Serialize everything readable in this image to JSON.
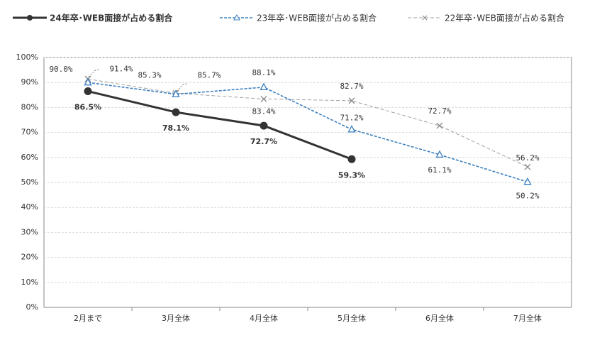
{
  "chart_data": {
    "type": "line",
    "categories": [
      "2月まで",
      "3月全体",
      "4月全体",
      "5月全体",
      "6月全体",
      "7月全体"
    ],
    "series": [
      {
        "name": "24年卒･WEB面接が占める割合",
        "color": "#333333",
        "values": [
          86.5,
          78.1,
          72.7,
          59.3,
          null,
          null
        ],
        "value_labels": [
          "86.5%",
          "78.1%",
          "72.7%",
          "59.3%",
          null,
          null
        ]
      },
      {
        "name": "23年卒･WEB面接が占める割合",
        "color": "#3a7fc1",
        "values": [
          90.0,
          85.3,
          88.1,
          71.2,
          61.1,
          50.2
        ],
        "value_labels": [
          "90.0%",
          "85.3%",
          "88.1%",
          "71.2%",
          "61.1%",
          "50.2%"
        ]
      },
      {
        "name": "22年卒･WEB面接が占める割合",
        "color": "#a0a0a0",
        "values": [
          91.4,
          85.7,
          83.4,
          82.7,
          72.7,
          56.2
        ],
        "value_labels": [
          "91.4%",
          "85.7%",
          "83.4%",
          "82.7%",
          "72.7%",
          "56.2%"
        ]
      }
    ],
    "ylim": [
      0,
      100
    ],
    "yticks": [
      {
        "value": 0,
        "label": "0%"
      },
      {
        "value": 10,
        "label": "10%"
      },
      {
        "value": 20,
        "label": "20%"
      },
      {
        "value": 30,
        "label": "30%"
      },
      {
        "value": 40,
        "label": "40%"
      },
      {
        "value": 50,
        "label": "50%"
      },
      {
        "value": 60,
        "label": "60%"
      },
      {
        "value": 70,
        "label": "70%"
      },
      {
        "value": 80,
        "label": "80%"
      },
      {
        "value": 90,
        "label": "90%"
      },
      {
        "value": 100,
        "label": "100%"
      }
    ],
    "grid": true
  }
}
